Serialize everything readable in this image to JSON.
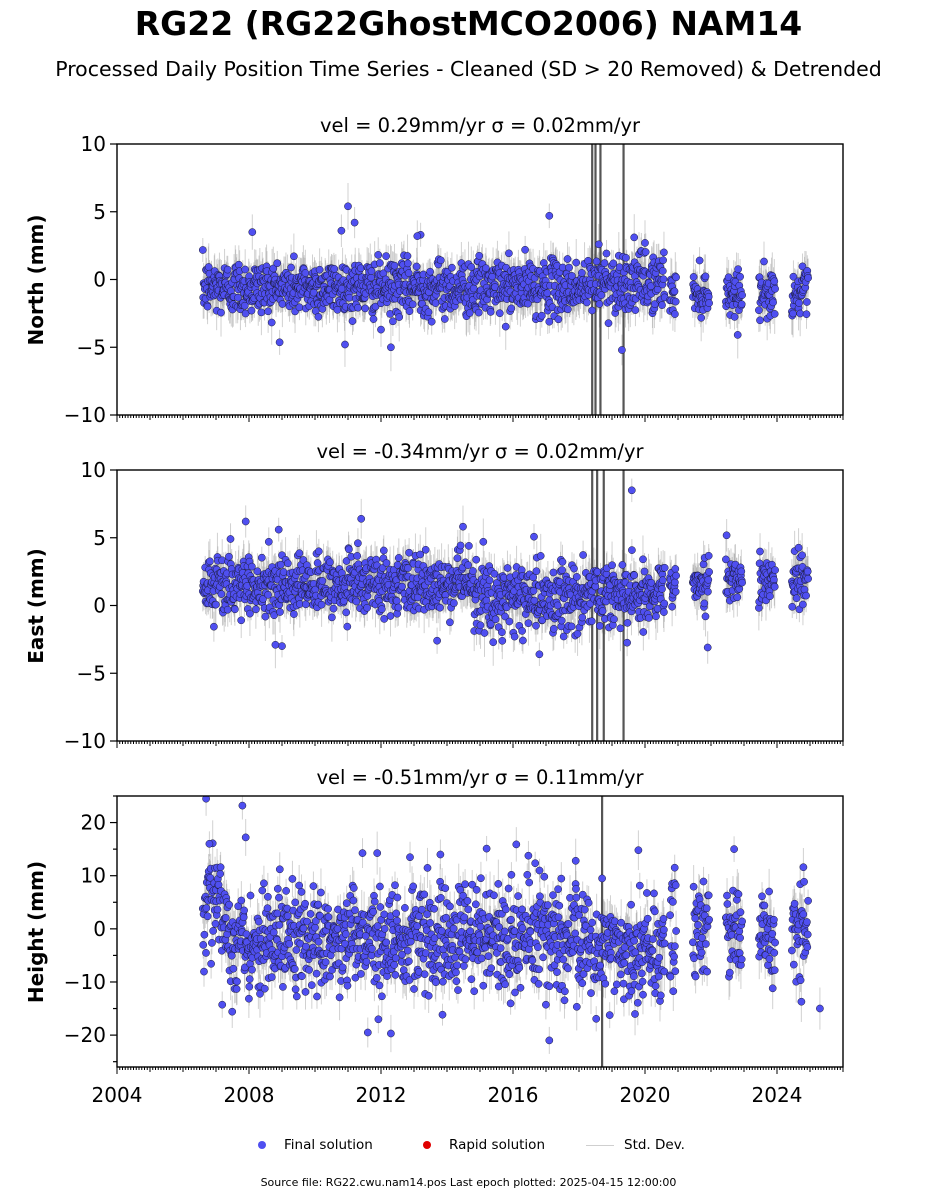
{
  "title": "RG22 (RG22GhostMCO2006) NAM14",
  "subtitle": "Processed Daily Position Time Series - Cleaned (SD > 20 Removed) & Detrended",
  "legend": {
    "final": "Final solution",
    "rapid": "Rapid solution",
    "std": "Std. Dev."
  },
  "footer": "Source file: RG22.cwu.nam14.pos  Last epoch plotted: 2025-04-15 12:00:00",
  "colors": {
    "final_fill": "#4f4ff0",
    "final_edge": "#1a1a33",
    "rapid": "#e00000",
    "std_dev": "#9a9a9a"
  },
  "chart_data": [
    {
      "type": "scatter",
      "title": "vel = 0.29mm/yr   σ = 0.02mm/yr",
      "ylabel": "North (mm)",
      "xlim": [
        2004,
        2026
      ],
      "ylim": [
        -10,
        10
      ],
      "yticks": [
        -10,
        -5,
        0,
        5,
        10
      ],
      "ytick_labels": [
        "−10",
        "−5",
        "0",
        "5",
        "10"
      ],
      "velocity_mm_yr": 0.29,
      "sigma_mm_yr": 0.02,
      "series": [
        {
          "name": "Final solution",
          "segments": [
            {
              "x": [
                2006.6,
                2018.4
              ],
              "mean": -0.6,
              "sd": 1.0
            },
            {
              "x": [
                2018.45,
                2020.6
              ],
              "mean": -0.2,
              "sd": 1.1
            },
            {
              "x": [
                2020.75,
                2025.3
              ],
              "mean": -1.0,
              "sd": 0.8,
              "seasonal": true
            }
          ],
          "outliers": [
            [
              2011.0,
              5.4
            ],
            [
              2011.2,
              4.2
            ],
            [
              2010.8,
              3.6
            ],
            [
              2017.1,
              4.7
            ],
            [
              2012.3,
              -5.0
            ],
            [
              2019.3,
              -5.2
            ],
            [
              2013.2,
              3.3
            ],
            [
              2008.1,
              3.5
            ],
            [
              2020.0,
              2.7
            ],
            [
              2018.6,
              2.6
            ],
            [
              2013.1,
              3.2
            ],
            [
              2012.0,
              -3.7
            ]
          ]
        }
      ],
      "x_ticks": [
        2004,
        2008,
        2012,
        2016,
        2020,
        2024
      ],
      "large_sd_epochs": [
        2018.4,
        2018.5,
        2018.65,
        2019.35
      ]
    },
    {
      "type": "scatter",
      "title": "vel = -0.34mm/yr   σ = 0.02mm/yr",
      "ylabel": "East (mm)",
      "xlim": [
        2004,
        2026
      ],
      "ylim": [
        -10,
        10
      ],
      "yticks": [
        -10,
        -5,
        0,
        5,
        10
      ],
      "ytick_labels": [
        "−10",
        "−5",
        "0",
        "5",
        "10"
      ],
      "velocity_mm_yr": -0.34,
      "sigma_mm_yr": 0.02,
      "series": [
        {
          "name": "Final solution",
          "segments": [
            {
              "x": [
                2006.6,
                2014.8
              ],
              "mean": 1.5,
              "sd": 1.1
            },
            {
              "x": [
                2014.8,
                2018.4
              ],
              "mean": 0.5,
              "sd": 1.2
            },
            {
              "x": [
                2018.45,
                2020.6
              ],
              "mean": 0.9,
              "sd": 1.2
            },
            {
              "x": [
                2020.75,
                2025.3
              ],
              "mean": 1.8,
              "sd": 0.9,
              "seasonal": true
            }
          ],
          "outliers": [
            [
              2007.9,
              6.2
            ],
            [
              2008.9,
              5.6
            ],
            [
              2011.4,
              6.4
            ],
            [
              2011.3,
              4.6
            ],
            [
              2019.6,
              8.5
            ],
            [
              2015.1,
              4.7
            ],
            [
              2021.9,
              -3.1
            ],
            [
              2009.0,
              -3.0
            ],
            [
              2008.8,
              -2.9
            ],
            [
              2016.8,
              -3.6
            ],
            [
              2013.7,
              -2.6
            ],
            [
              2008.6,
              4.7
            ]
          ]
        }
      ],
      "x_ticks": [
        2004,
        2008,
        2012,
        2016,
        2020,
        2024
      ],
      "large_sd_epochs": [
        2018.4,
        2018.55,
        2018.75,
        2019.35
      ]
    },
    {
      "type": "scatter",
      "title": "vel = -0.51mm/yr   σ = 0.11mm/yr",
      "ylabel": "Height (mm)",
      "xlim": [
        2004,
        2026
      ],
      "ylim": [
        -26,
        25
      ],
      "yticks": [
        -20,
        -10,
        0,
        10,
        20
      ],
      "ytick_labels": [
        "−20",
        "−10",
        "0",
        "10",
        "20"
      ],
      "velocity_mm_yr": -0.51,
      "sigma_mm_yr": 0.11,
      "series": [
        {
          "name": "Final solution",
          "segments": [
            {
              "x": [
                2006.6,
                2007.3
              ],
              "mean": 3.0,
              "sd": 5.5
            },
            {
              "x": [
                2007.3,
                2018.4
              ],
              "mean": -2.0,
              "sd": 5.0
            },
            {
              "x": [
                2018.45,
                2020.6
              ],
              "mean": -3.5,
              "sd": 5.0
            },
            {
              "x": [
                2020.75,
                2025.3
              ],
              "mean": -0.8,
              "sd": 4.5,
              "seasonal": true
            }
          ],
          "outliers": [
            [
              2006.7,
              24.5
            ],
            [
              2007.8,
              23.2
            ],
            [
              2007.9,
              17.2
            ],
            [
              2006.8,
              16.0
            ],
            [
              2013.8,
              14.0
            ],
            [
              2015.2,
              15.1
            ],
            [
              2012.3,
              -19.7
            ],
            [
              2017.1,
              -21.0
            ],
            [
              2022.7,
              15.0
            ],
            [
              2019.8,
              14.8
            ],
            [
              2011.6,
              -19.5
            ],
            [
              2018.7,
              9.5
            ],
            [
              2017.9,
              12.8
            ],
            [
              2016.1,
              15.9
            ],
            [
              2020.9,
              11.5
            ],
            [
              2024.8,
              11.6
            ],
            [
              2025.3,
              -15.0
            ]
          ]
        }
      ],
      "x_ticks": [
        2004,
        2008,
        2012,
        2016,
        2020,
        2024
      ],
      "x_tick_labels": [
        "2004",
        "2008",
        "2012",
        "2016",
        "2020",
        "2024"
      ],
      "large_sd_epochs": [
        2018.7
      ]
    }
  ]
}
